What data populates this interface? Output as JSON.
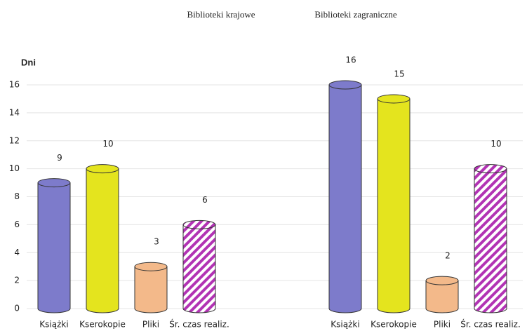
{
  "chart_data": {
    "type": "bar",
    "ylabel": "Dni",
    "ylim": [
      0,
      16
    ],
    "yticks": [
      0,
      2,
      4,
      6,
      8,
      10,
      12,
      14,
      16
    ],
    "grid": true,
    "colors": [
      "#7d7bcb",
      "#e4e41e",
      "#f3b98a",
      "#b233b4"
    ],
    "hatched": [
      false,
      false,
      false,
      true
    ],
    "groups": [
      {
        "name": "Biblioteki krajowe",
        "categories": [
          "Książki",
          "Kserokopie",
          "Pliki",
          "Śr. czas realiz."
        ],
        "values": [
          9,
          10,
          3,
          6
        ]
      },
      {
        "name": "Biblioteki zagraniczne",
        "categories": [
          "Książki",
          "Kserokopie",
          "Pliki",
          "Śr. czas realiz."
        ],
        "values": [
          16,
          15,
          2,
          10
        ]
      }
    ]
  }
}
